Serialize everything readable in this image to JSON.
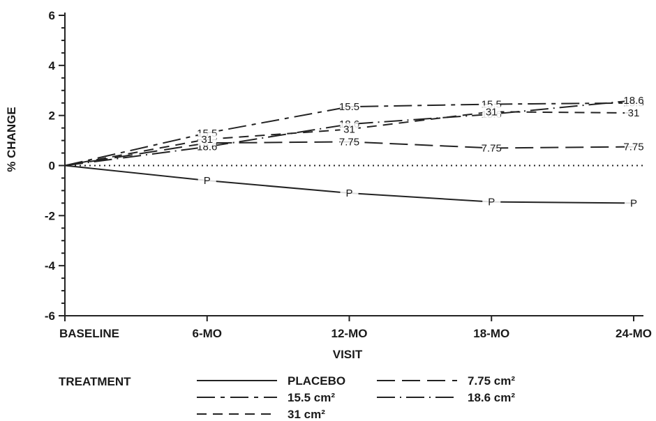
{
  "chart_data": {
    "type": "line",
    "ylabel": "% CHANGE",
    "xlabel": "VISIT",
    "categories": [
      "BASELINE",
      "6-MO",
      "12-MO",
      "18-MO",
      "24-MO"
    ],
    "ylim": [
      -6,
      6
    ],
    "yticks": [
      -6,
      -4,
      -2,
      0,
      2,
      4,
      6
    ],
    "y_minor_step": 0.5,
    "zero_reference_line": "dotted",
    "legend_title": "TREATMENT",
    "series": [
      {
        "name": "PLACEBO",
        "marker": "P",
        "dash": "solid",
        "values": [
          0,
          -0.6,
          -1.1,
          -1.45,
          -1.5
        ]
      },
      {
        "name": "7.75 cm²",
        "marker": "7.75",
        "dash": "long-dash",
        "values": [
          0,
          0.9,
          0.95,
          0.7,
          0.75
        ]
      },
      {
        "name": "15.5 cm²",
        "marker": "15.5",
        "dash": "long-short",
        "values": [
          0,
          1.3,
          2.35,
          2.45,
          2.5
        ]
      },
      {
        "name": "18.6 cm²",
        "marker": "18.6",
        "dash": "long-dot",
        "values": [
          0,
          0.75,
          1.65,
          2.05,
          2.6
        ]
      },
      {
        "name": "31 cm²",
        "marker": "31",
        "dash": "dash",
        "values": [
          0,
          1.05,
          1.45,
          2.15,
          2.1
        ]
      }
    ]
  }
}
